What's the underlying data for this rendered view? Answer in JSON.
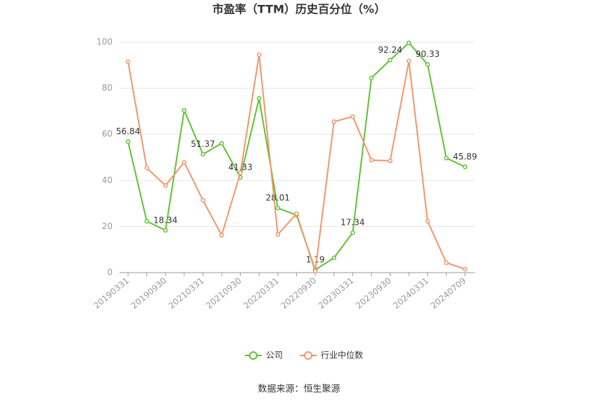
{
  "chart_data": {
    "type": "line",
    "title": "市盈率（TTM）历史百分位（%）",
    "categories": [
      "20190331",
      null,
      "20190930",
      null,
      "20210331",
      null,
      "20210930",
      null,
      "20220331",
      null,
      "20220930",
      null,
      "20230331",
      null,
      "20230930",
      null,
      "20240331",
      null,
      "20240709"
    ],
    "series": [
      {
        "name": "公司",
        "color": "#5cc431",
        "values": [
          56.84,
          22.3,
          18.34,
          70.4,
          51.37,
          56.1,
          41.33,
          75.6,
          28.01,
          25.0,
          1.19,
          6.4,
          17.34,
          84.5,
          92.24,
          99.7,
          90.33,
          49.7,
          45.89
        ],
        "value_labels": [
          "56.84",
          null,
          "18.34",
          null,
          "51.37",
          null,
          "41.33",
          null,
          "28.01",
          null,
          "1.19",
          null,
          "17.34",
          null,
          "92.24",
          null,
          "90.33",
          null,
          "45.89"
        ]
      },
      {
        "name": "行业中位数",
        "color": "#f4956a",
        "values": [
          91.5,
          45.4,
          37.8,
          47.9,
          31.4,
          16.2,
          43.3,
          94.5,
          16.5,
          25.6,
          0.6,
          65.5,
          67.7,
          48.8,
          48.5,
          91.8,
          22.3,
          4.3,
          1.5
        ]
      }
    ],
    "ylim": [
      0,
      100
    ],
    "yticks": [
      0,
      20,
      40,
      60,
      80,
      100
    ],
    "grid": true,
    "legend": "bottom",
    "source": "数据来源：恒生聚源"
  }
}
